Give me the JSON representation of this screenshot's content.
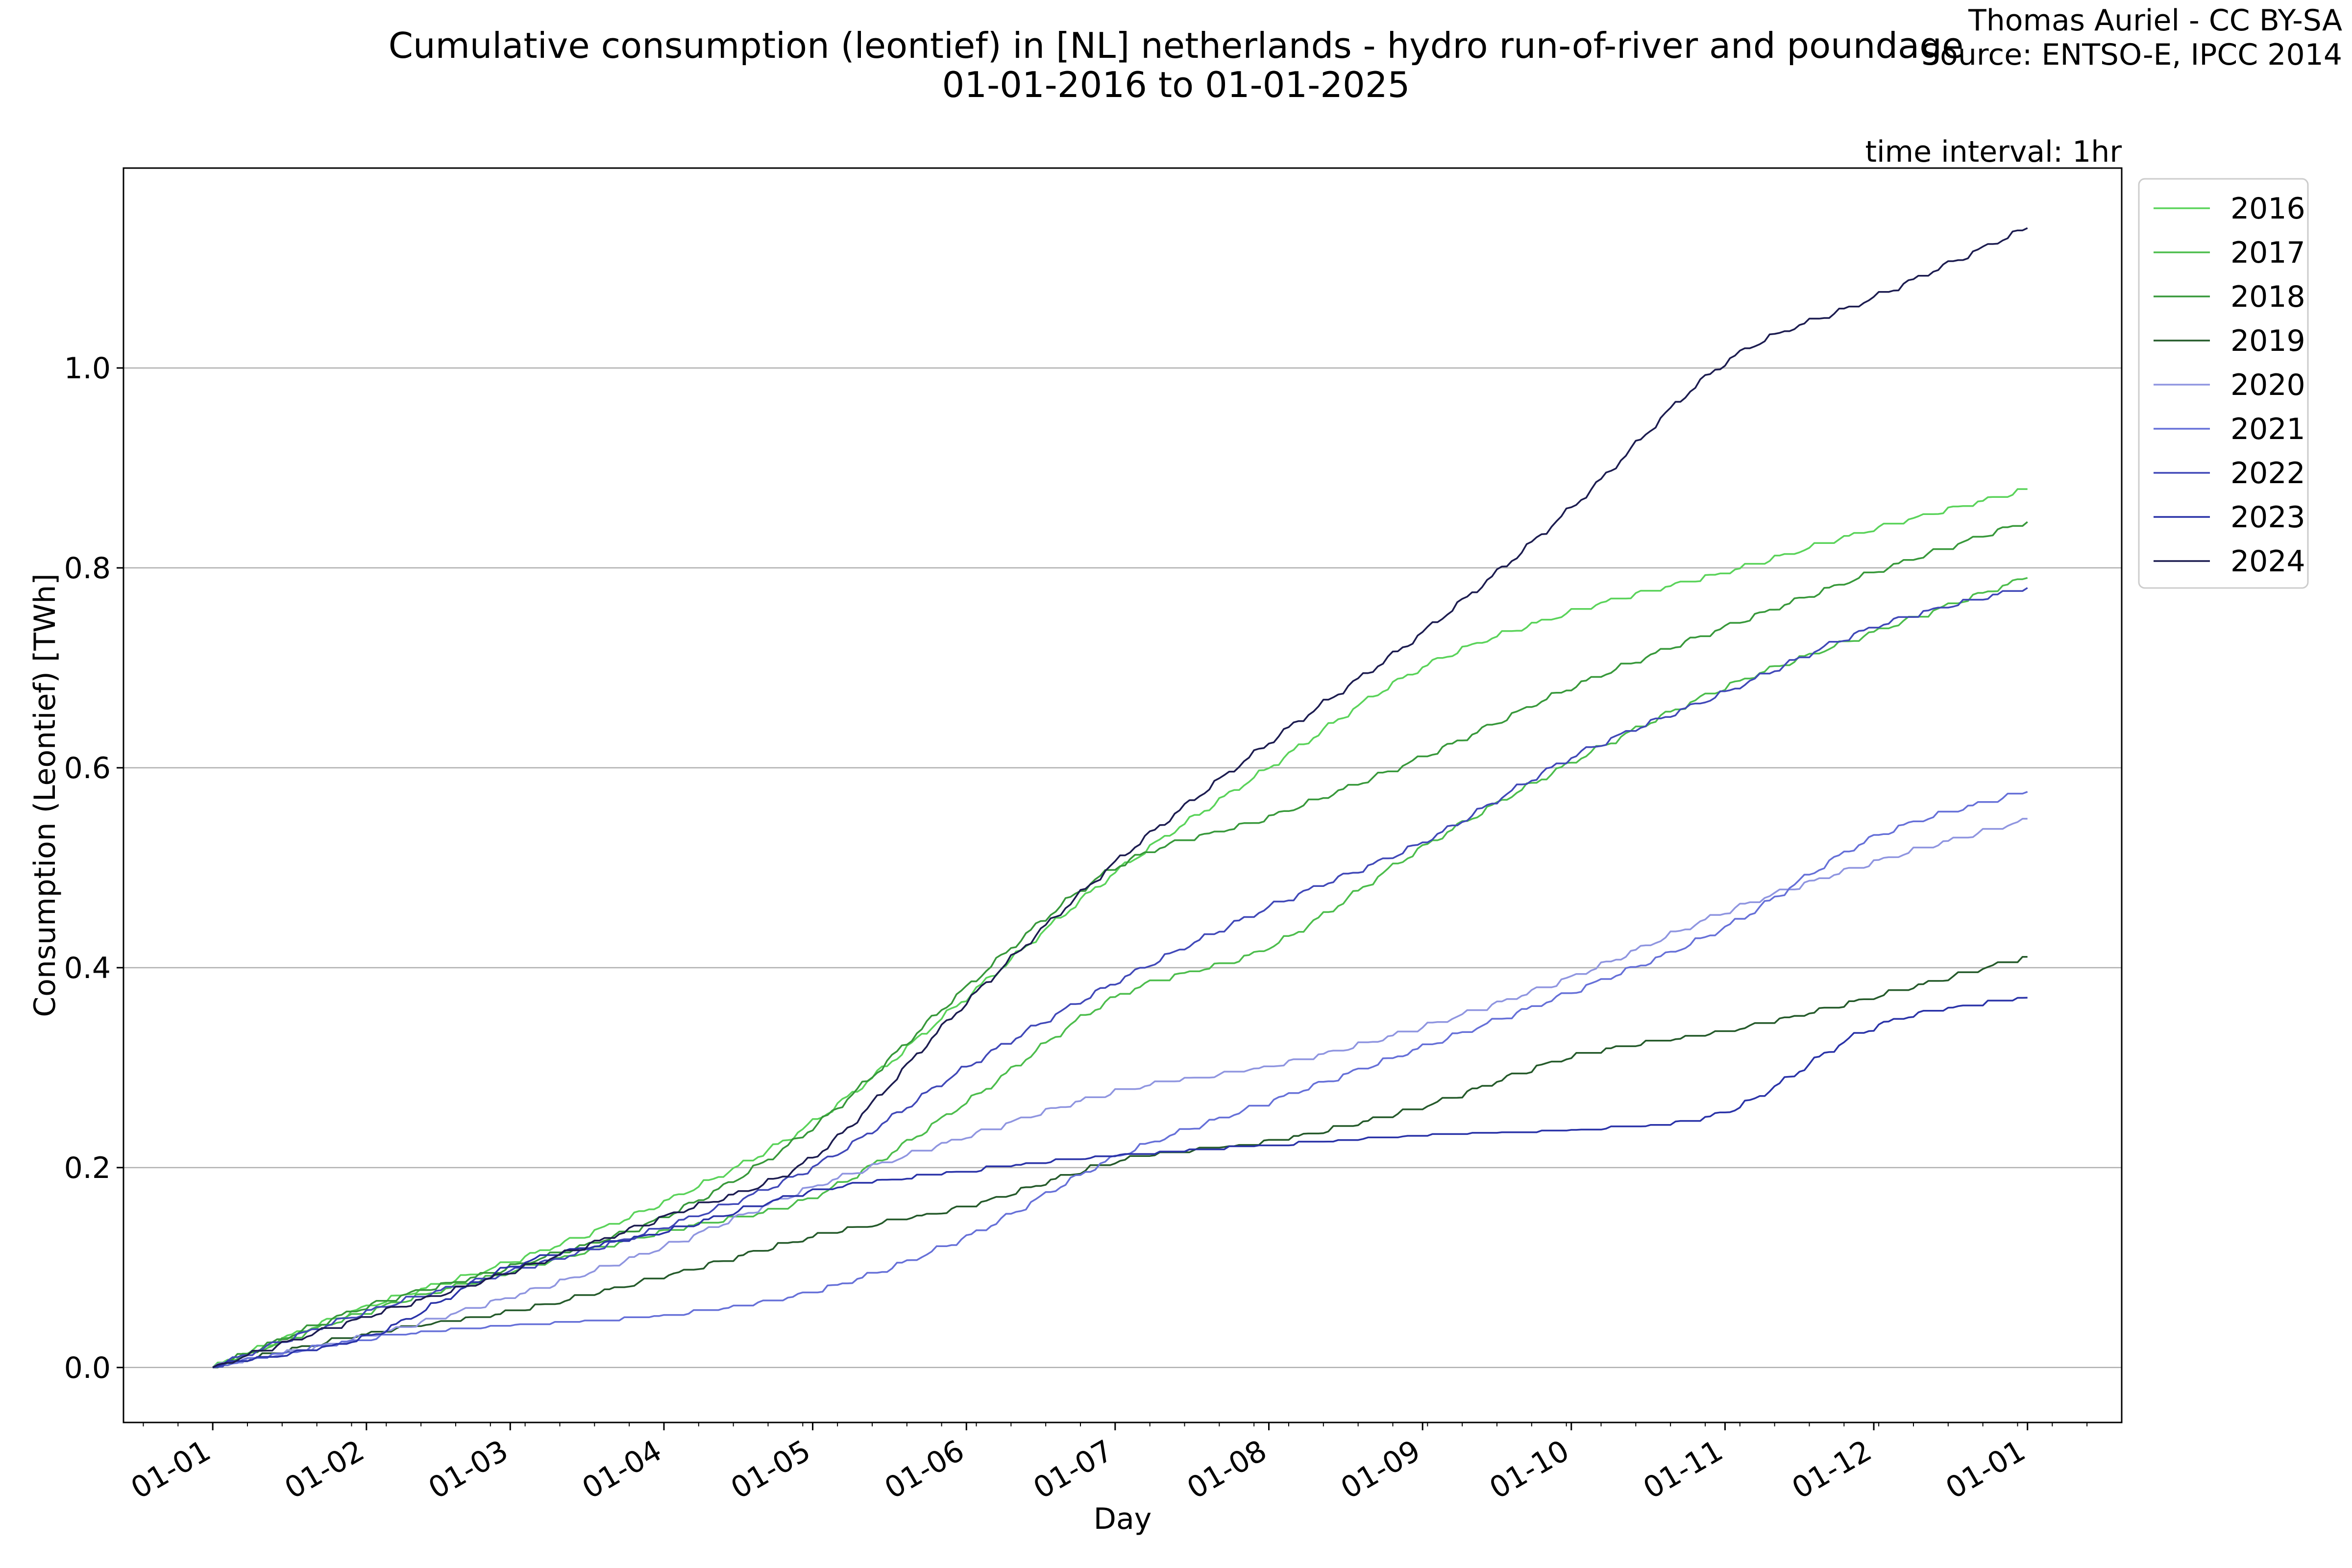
{
  "chart_data": {
    "type": "line",
    "title_line1": "Cumulative consumption (leontief) in [NL] netherlands - hydro run-of-river and poundage",
    "title_line2": "01-01-2016 to 01-01-2025",
    "credit_line1": "Thomas Auriel - CC BY-SA",
    "credit_line2": "Source: ENTSO-E, IPCC 2014",
    "interval_note": "time interval: 1hr",
    "xlabel": "Day",
    "ylabel": "Consumption (Leontief) [TWh]",
    "ylim": [
      -0.055,
      1.2
    ],
    "xlim": [
      -18,
      385
    ],
    "y_ticks": [
      0.0,
      0.2,
      0.4,
      0.6,
      0.8,
      1.0
    ],
    "y_tick_labels": [
      "0.0",
      "0.2",
      "0.4",
      "0.6",
      "0.8",
      "1.0"
    ],
    "x_ticks": [
      0,
      31,
      60,
      91,
      121,
      152,
      182,
      213,
      244,
      274,
      305,
      335,
      366
    ],
    "x_tick_labels": [
      "01-01",
      "01-02",
      "01-03",
      "01-04",
      "01-05",
      "01-06",
      "01-07",
      "01-08",
      "01-09",
      "01-10",
      "01-11",
      "01-12",
      "01-01"
    ],
    "grid": "horizontal",
    "legend_position": "outside-top-right",
    "x": [
      0,
      31,
      60,
      91,
      121,
      152,
      182,
      213,
      244,
      274,
      305,
      335,
      366
    ],
    "series": [
      {
        "name": "2016",
        "color": "#5ad35a",
        "values": [
          0,
          0.06,
          0.105,
          0.165,
          0.245,
          0.37,
          0.495,
          0.6,
          0.7,
          0.755,
          0.795,
          0.838,
          0.878
        ]
      },
      {
        "name": "2017",
        "color": "#4cbd4c",
        "values": [
          0,
          0.055,
          0.095,
          0.135,
          0.17,
          0.265,
          0.37,
          0.42,
          0.52,
          0.605,
          0.68,
          0.735,
          0.79
        ]
      },
      {
        "name": "2018",
        "color": "#37983a",
        "values": [
          0,
          0.06,
          0.1,
          0.15,
          0.24,
          0.38,
          0.5,
          0.55,
          0.61,
          0.68,
          0.74,
          0.795,
          0.846
        ]
      },
      {
        "name": "2019",
        "color": "#245a2a",
        "values": [
          0,
          0.032,
          0.055,
          0.09,
          0.13,
          0.16,
          0.205,
          0.225,
          0.26,
          0.31,
          0.335,
          0.37,
          0.41
        ]
      },
      {
        "name": "2020",
        "color": "#8f95e0",
        "values": [
          0,
          0.03,
          0.07,
          0.12,
          0.18,
          0.23,
          0.275,
          0.3,
          0.34,
          0.39,
          0.455,
          0.505,
          0.547
        ]
      },
      {
        "name": "2021",
        "color": "#6670d8",
        "values": [
          0,
          0.027,
          0.04,
          0.05,
          0.075,
          0.13,
          0.21,
          0.265,
          0.32,
          0.375,
          0.44,
          0.53,
          0.576
        ]
      },
      {
        "name": "2022",
        "color": "#4048b8",
        "values": [
          0,
          0.055,
          0.095,
          0.14,
          0.2,
          0.3,
          0.385,
          0.46,
          0.525,
          0.61,
          0.675,
          0.74,
          0.78
        ]
      },
      {
        "name": "2023",
        "color": "#2a33a8",
        "values": [
          0,
          0.03,
          0.1,
          0.135,
          0.175,
          0.195,
          0.21,
          0.22,
          0.23,
          0.235,
          0.255,
          0.34,
          0.37
        ]
      },
      {
        "name": "2024",
        "color": "#1c1c50",
        "values": [
          0,
          0.05,
          0.095,
          0.15,
          0.21,
          0.365,
          0.505,
          0.625,
          0.735,
          0.86,
          1.005,
          1.07,
          1.14
        ]
      }
    ]
  }
}
